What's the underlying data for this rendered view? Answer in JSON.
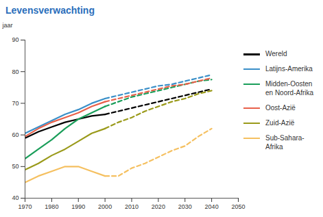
{
  "chart_data": {
    "type": "line",
    "title": "Levensverwachting",
    "y_label": "jaar",
    "x": [
      1970,
      1975,
      1980,
      1985,
      1990,
      1995,
      2000,
      2005,
      2010,
      2015,
      2020,
      2025,
      2030,
      2035,
      2040
    ],
    "xlim": [
      1970,
      2050
    ],
    "xticks": [
      1970,
      1980,
      1990,
      2000,
      2010,
      2020,
      2030,
      2040,
      2050
    ],
    "ylim": [
      40,
      90
    ],
    "yticks": [
      40,
      50,
      60,
      70,
      80,
      90
    ],
    "grid": false,
    "legend": "right",
    "series": [
      {
        "name": "Wereld",
        "color": "#000000",
        "line_style": "solid",
        "values": [
          59,
          61,
          62.5,
          64,
          65,
          66,
          66.5,
          null,
          null,
          null,
          null,
          null,
          null,
          null,
          null
        ]
      },
      {
        "name": "Wereld",
        "color": "#000000",
        "line_style": "dashed",
        "values": [
          null,
          null,
          null,
          null,
          null,
          null,
          66.5,
          67.5,
          68.5,
          69.5,
          70.5,
          71.5,
          72.5,
          73.5,
          74.5
        ]
      },
      {
        "name": "Latijns-Amerika",
        "color": "#3a8fc8",
        "line_style": "solid",
        "values": [
          60.5,
          62.5,
          64.5,
          66.5,
          68,
          70,
          71.5,
          null,
          null,
          null,
          null,
          null,
          null,
          null,
          null
        ]
      },
      {
        "name": "Latijns-Amerika",
        "color": "#3a8fc8",
        "line_style": "dashed",
        "values": [
          null,
          null,
          null,
          null,
          null,
          null,
          71.5,
          72.5,
          73.5,
          74.5,
          75.5,
          76,
          77,
          78,
          79
        ]
      },
      {
        "name": "Midden-Oosten en Noord-Afrika",
        "color": "#1a9e5a",
        "line_style": "solid",
        "values": [
          52.5,
          55.5,
          58.5,
          62,
          65,
          67,
          69,
          null,
          null,
          null,
          null,
          null,
          null,
          null,
          null
        ]
      },
      {
        "name": "Midden-Oosten en Noord-Afrika",
        "color": "#1a9e5a",
        "line_style": "dashed",
        "values": [
          null,
          null,
          null,
          null,
          null,
          null,
          69,
          70.5,
          72,
          73,
          74,
          75,
          76,
          77,
          77.5
        ]
      },
      {
        "name": "Oost-Azië",
        "color": "#e8604a",
        "line_style": "solid",
        "values": [
          59.5,
          62,
          64,
          65.5,
          67,
          69,
          70.5,
          null,
          null,
          null,
          null,
          null,
          null,
          null,
          null
        ]
      },
      {
        "name": "Oost-Azië",
        "color": "#e8604a",
        "line_style": "dashed",
        "values": [
          null,
          null,
          null,
          null,
          null,
          null,
          70.5,
          71.5,
          72.5,
          73.5,
          74.5,
          75.5,
          76,
          77,
          78
        ]
      },
      {
        "name": "Zuid-Azië",
        "color": "#9a9a1a",
        "line_style": "solid",
        "values": [
          49,
          51,
          53.5,
          55.5,
          58,
          60.5,
          62,
          null,
          null,
          null,
          null,
          null,
          null,
          null,
          null
        ]
      },
      {
        "name": "Zuid-Azië",
        "color": "#9a9a1a",
        "line_style": "dashed",
        "values": [
          null,
          null,
          null,
          null,
          null,
          null,
          62,
          64,
          65.5,
          67.5,
          69,
          70.5,
          71.5,
          73,
          74
        ]
      },
      {
        "name": "Sub-Sahara-Afrika",
        "color": "#f5c060",
        "line_style": "solid",
        "values": [
          45,
          47,
          48.5,
          50,
          50,
          48.5,
          47,
          null,
          null,
          null,
          null,
          null,
          null,
          null,
          null
        ]
      },
      {
        "name": "Sub-Sahara-Afrika",
        "color": "#f5c060",
        "line_style": "dashed",
        "values": [
          null,
          null,
          null,
          null,
          null,
          null,
          47,
          47,
          49.5,
          51,
          53,
          55,
          56.5,
          59.5,
          62
        ]
      }
    ]
  }
}
